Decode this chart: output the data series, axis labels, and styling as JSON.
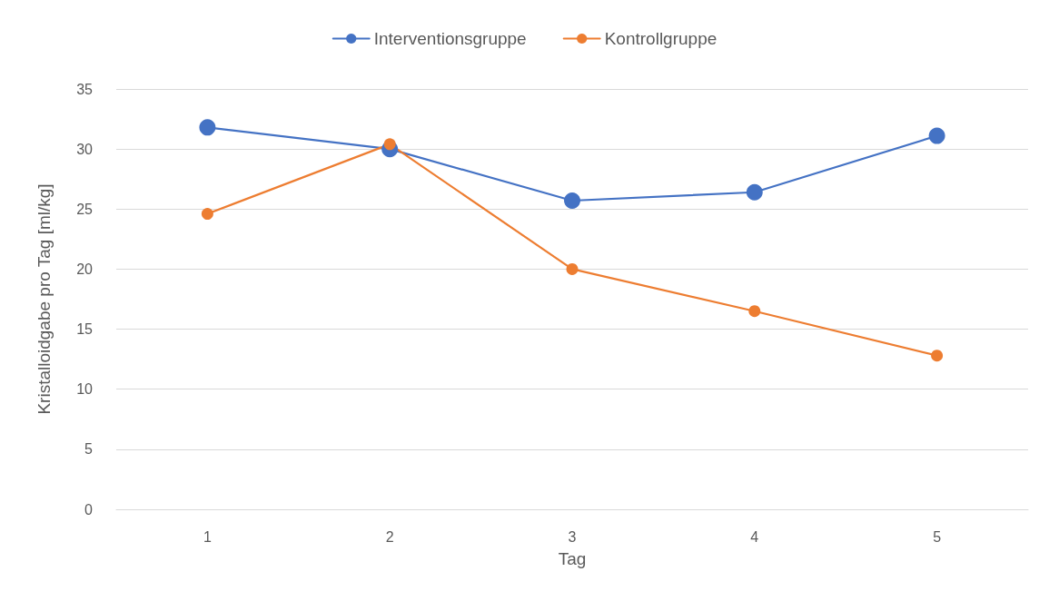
{
  "chart_data": {
    "type": "line",
    "xlabel": "Tag",
    "ylabel": "Kristalloidgabe pro Tag [ml/kg]",
    "categories": [
      "1",
      "2",
      "3",
      "4",
      "5"
    ],
    "series": [
      {
        "name": "Interventionsgruppe",
        "color": "#4472c4",
        "values": [
          31.8,
          30.0,
          25.7,
          26.4,
          31.1
        ]
      },
      {
        "name": "Kontrollgruppe",
        "color": "#ed7d31",
        "values": [
          24.6,
          30.4,
          20.0,
          16.5,
          12.8
        ]
      }
    ],
    "ylim": [
      0,
      35
    ],
    "yticks": [
      0,
      5,
      10,
      15,
      20,
      25,
      30,
      35
    ],
    "grid": "y",
    "legend": "top",
    "marker": "circle",
    "line_style": "solid"
  }
}
